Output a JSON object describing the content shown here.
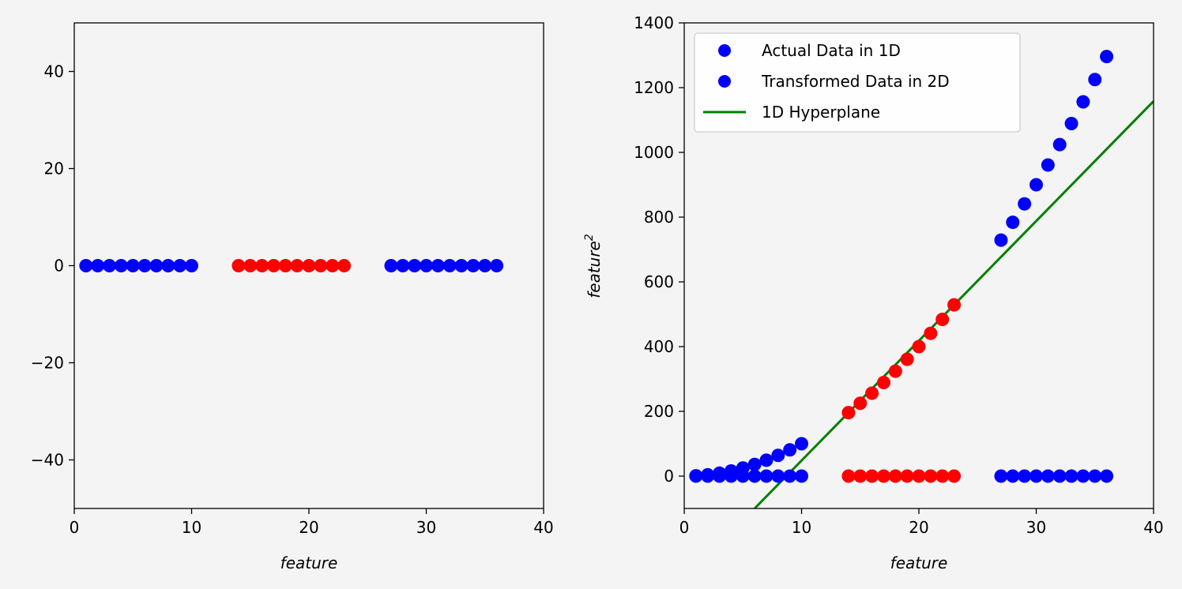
{
  "chart_data": [
    {
      "type": "scatter",
      "title": "",
      "xlabel": "feature",
      "ylabel": "",
      "xlim": [
        0,
        40
      ],
      "ylim": [
        -50,
        50
      ],
      "xticks": [
        0,
        10,
        20,
        30,
        40
      ],
      "yticks": [
        -40,
        -20,
        0,
        20,
        40
      ],
      "xtick_labels": [
        "0",
        "10",
        "20",
        "30",
        "40"
      ],
      "ytick_labels": [
        "−40",
        "−20",
        "0",
        "20",
        "40"
      ],
      "grid": false,
      "series": [
        {
          "color": "#0000ff",
          "x": [
            1,
            2,
            3,
            4,
            5,
            6,
            7,
            8,
            9,
            10
          ],
          "y": [
            0,
            0,
            0,
            0,
            0,
            0,
            0,
            0,
            0,
            0
          ]
        },
        {
          "color": "#ff0000",
          "x": [
            14,
            15,
            16,
            17,
            18,
            19,
            20,
            21,
            22,
            23
          ],
          "y": [
            0,
            0,
            0,
            0,
            0,
            0,
            0,
            0,
            0,
            0
          ]
        },
        {
          "color": "#0000ff",
          "x": [
            27,
            28,
            29,
            30,
            31,
            32,
            33,
            34,
            35,
            36
          ],
          "y": [
            0,
            0,
            0,
            0,
            0,
            0,
            0,
            0,
            0,
            0
          ]
        }
      ]
    },
    {
      "type": "scatter",
      "title": "",
      "xlabel": "feature",
      "ylabel": "feature",
      "ylabel_superscript": "2",
      "xlim": [
        0,
        40
      ],
      "ylim": [
        -100,
        1400
      ],
      "xticks": [
        0,
        10,
        20,
        30,
        40
      ],
      "yticks": [
        0,
        200,
        400,
        600,
        800,
        1000,
        1200,
        1400
      ],
      "xtick_labels": [
        "0",
        "10",
        "20",
        "30",
        "40"
      ],
      "ytick_labels": [
        "0",
        "200",
        "400",
        "600",
        "800",
        "1000",
        "1200",
        "1400"
      ],
      "grid": false,
      "legend": {
        "placement": "upper-left",
        "entries": [
          {
            "label": "Actual Data in 1D",
            "kind": "marker",
            "color": "#0000ff"
          },
          {
            "label": "Transformed Data in 2D",
            "kind": "marker",
            "color": "#0000ff"
          },
          {
            "label": "1D Hyperplane",
            "kind": "line",
            "color": "#008000"
          }
        ]
      },
      "series": [
        {
          "color": "#0000ff",
          "x": [
            1,
            2,
            3,
            4,
            5,
            6,
            7,
            8,
            9,
            10
          ],
          "y": [
            0,
            0,
            0,
            0,
            0,
            0,
            0,
            0,
            0,
            0
          ]
        },
        {
          "color": "#ff0000",
          "x": [
            14,
            15,
            16,
            17,
            18,
            19,
            20,
            21,
            22,
            23
          ],
          "y": [
            0,
            0,
            0,
            0,
            0,
            0,
            0,
            0,
            0,
            0
          ]
        },
        {
          "color": "#0000ff",
          "x": [
            27,
            28,
            29,
            30,
            31,
            32,
            33,
            34,
            35,
            36
          ],
          "y": [
            0,
            0,
            0,
            0,
            0,
            0,
            0,
            0,
            0,
            0
          ]
        },
        {
          "color": "#0000ff",
          "x": [
            1,
            2,
            3,
            4,
            5,
            6,
            7,
            8,
            9,
            10
          ],
          "y": [
            1,
            4,
            9,
            16,
            25,
            36,
            49,
            64,
            81,
            100
          ]
        },
        {
          "color": "#ff0000",
          "x": [
            14,
            15,
            16,
            17,
            18,
            19,
            20,
            21,
            22,
            23
          ],
          "y": [
            196,
            225,
            256,
            289,
            324,
            361,
            400,
            441,
            484,
            529
          ]
        },
        {
          "color": "#0000ff",
          "x": [
            27,
            28,
            29,
            30,
            31,
            32,
            33,
            34,
            35,
            36
          ],
          "y": [
            729,
            784,
            841,
            900,
            961,
            1024,
            1089,
            1156,
            1225,
            1296
          ]
        }
      ],
      "lines": [
        {
          "color": "#008000",
          "x": [
            6,
            40
          ],
          "y": [
            -100,
            1158
          ]
        }
      ]
    }
  ]
}
